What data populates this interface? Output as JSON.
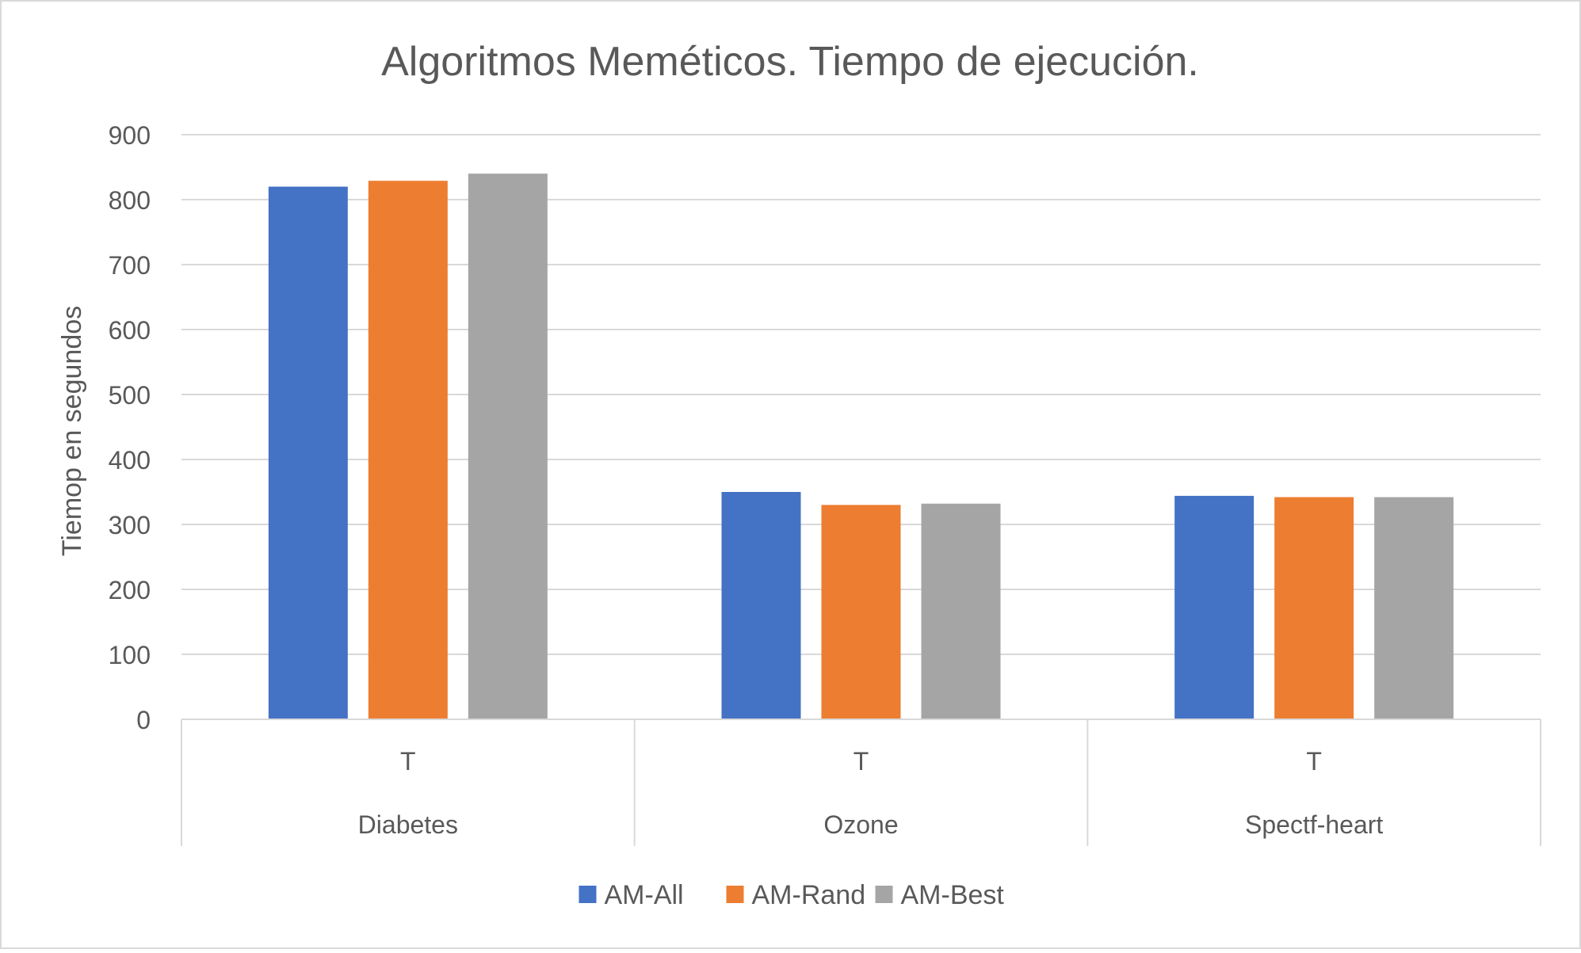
{
  "chart_data": {
    "type": "bar",
    "title": "Algoritmos Meméticos. Tiempo de ejecución.",
    "xlabel": "",
    "ylabel": "Tiemop en segundos",
    "ylim": [
      0,
      900
    ],
    "yticks": [
      0,
      100,
      200,
      300,
      400,
      500,
      600,
      700,
      800,
      900
    ],
    "grid": true,
    "legend_position": "bottom",
    "groups": [
      {
        "category": "Diabetes",
        "subcategory": "T"
      },
      {
        "category": "Ozone",
        "subcategory": "T"
      },
      {
        "category": "Spectf-heart",
        "subcategory": "T"
      }
    ],
    "series": [
      {
        "name": "AM-All",
        "color": "#4472C4",
        "values": [
          820,
          350,
          344
        ]
      },
      {
        "name": "AM-Rand",
        "color": "#ED7D31",
        "values": [
          829,
          330,
          342
        ]
      },
      {
        "name": "AM-Best",
        "color": "#A5A5A5",
        "values": [
          840,
          332,
          342
        ]
      }
    ]
  }
}
